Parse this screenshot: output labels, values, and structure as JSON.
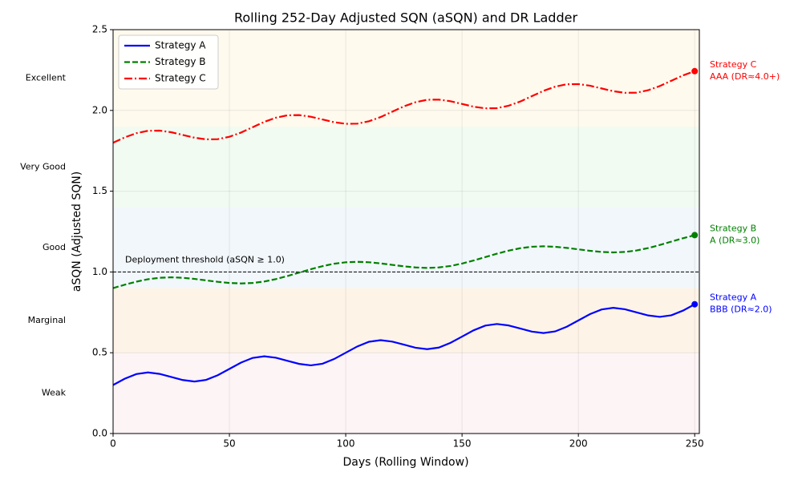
{
  "chart_data": {
    "type": "line",
    "title": "Rolling 252-Day Adjusted SQN (aSQN) and DR Ladder",
    "x_label": "Days (Rolling Window)",
    "y_label": "aSQN (Adjusted SQN)",
    "xlim": [
      0,
      252
    ],
    "ylim": [
      0,
      2.5
    ],
    "xticks": [
      0,
      50,
      100,
      150,
      200,
      250
    ],
    "yticks": [
      {
        "value": 0,
        "label": "0.0"
      },
      0.5,
      {
        "value": 1,
        "label": "1.0"
      },
      1.5,
      {
        "value": 2,
        "label": "2.0"
      },
      2.5
    ],
    "grid": true,
    "legend": "upper left",
    "bands": [
      {
        "label": "Weak",
        "range": [
          0,
          0.5
        ],
        "color": "#fdf4f6"
      },
      {
        "label": "Marginal",
        "range": [
          0.5,
          0.9
        ],
        "color": "#fdf4e7"
      },
      {
        "label": "Good",
        "range": [
          0.9,
          1.4
        ],
        "color": "#f2f7fc"
      },
      {
        "label": "Very Good",
        "range": [
          1.4,
          1.9
        ],
        "color": "#f1fbf1"
      },
      {
        "label": "Excellent",
        "range": [
          1.9,
          2.5
        ],
        "color": "#fffaee"
      }
    ],
    "threshold": {
      "value": 1,
      "label": "Deployment threshold (aSQN ≥ 1.0)"
    },
    "x": [
      0,
      5,
      10,
      15,
      20,
      25,
      30,
      35,
      40,
      45,
      50,
      55,
      60,
      65,
      70,
      75,
      80,
      85,
      90,
      95,
      100,
      105,
      110,
      115,
      120,
      125,
      130,
      135,
      140,
      145,
      150,
      155,
      160,
      165,
      170,
      175,
      180,
      185,
      190,
      195,
      200,
      205,
      210,
      215,
      220,
      225,
      230,
      235,
      240,
      245,
      250
    ],
    "series": [
      {
        "name": "Strategy A",
        "color": "#0000ff",
        "linestyle": "solid",
        "rating": "BBB (DR≈2.0)",
        "values": [
          0.3,
          0.339,
          0.368,
          0.378,
          0.369,
          0.35,
          0.331,
          0.322,
          0.332,
          0.361,
          0.4,
          0.439,
          0.468,
          0.478,
          0.469,
          0.45,
          0.431,
          0.422,
          0.432,
          0.461,
          0.5,
          0.539,
          0.568,
          0.578,
          0.569,
          0.55,
          0.531,
          0.522,
          0.532,
          0.561,
          0.6,
          0.639,
          0.668,
          0.678,
          0.669,
          0.65,
          0.631,
          0.622,
          0.632,
          0.661,
          0.7,
          0.739,
          0.768,
          0.778,
          0.769,
          0.75,
          0.731,
          0.722,
          0.732,
          0.761,
          0.8
        ]
      },
      {
        "name": "Strategy B",
        "color": "#008000",
        "linestyle": "dashed",
        "rating": "A (DR≈3.0)",
        "values": [
          0.9,
          0.921,
          0.94,
          0.955,
          0.964,
          0.967,
          0.964,
          0.957,
          0.948,
          0.939,
          0.932,
          0.929,
          0.932,
          0.941,
          0.956,
          0.975,
          0.996,
          1.017,
          1.036,
          1.051,
          1.06,
          1.063,
          1.06,
          1.053,
          1.044,
          1.035,
          1.028,
          1.025,
          1.028,
          1.037,
          1.052,
          1.071,
          1.092,
          1.113,
          1.132,
          1.147,
          1.156,
          1.159,
          1.156,
          1.149,
          1.14,
          1.131,
          1.124,
          1.121,
          1.124,
          1.133,
          1.148,
          1.167,
          1.188,
          1.209,
          1.228
        ]
      },
      {
        "name": "Strategy C",
        "color": "#ff0000",
        "linestyle": "dashdot",
        "rating": "AAA (DR≈4.0+)",
        "values": [
          1.8,
          1.833,
          1.859,
          1.874,
          1.875,
          1.865,
          1.848,
          1.831,
          1.821,
          1.822,
          1.837,
          1.863,
          1.896,
          1.929,
          1.955,
          1.97,
          1.971,
          1.961,
          1.944,
          1.927,
          1.917,
          1.918,
          1.933,
          1.959,
          1.992,
          2.025,
          2.051,
          2.066,
          2.067,
          2.057,
          2.04,
          2.023,
          2.013,
          2.014,
          2.029,
          2.055,
          2.088,
          2.121,
          2.147,
          2.162,
          2.163,
          2.153,
          2.136,
          2.119,
          2.109,
          2.11,
          2.125,
          2.151,
          2.184,
          2.217,
          2.243
        ]
      }
    ]
  }
}
